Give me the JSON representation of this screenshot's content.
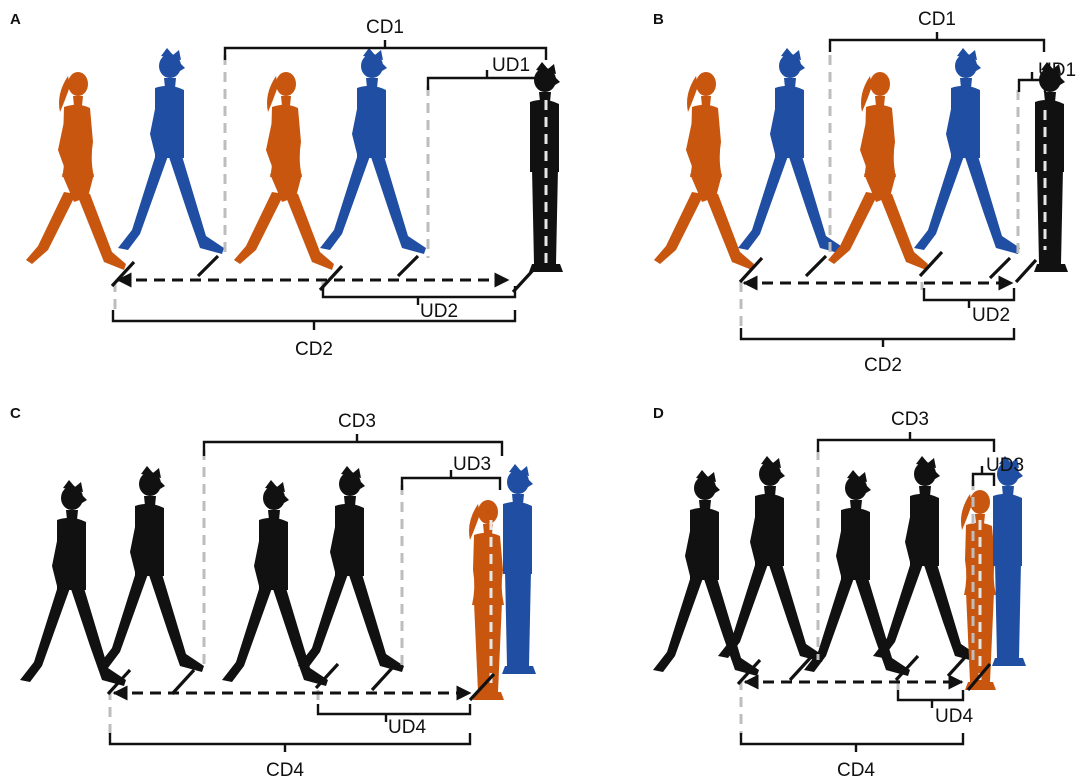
{
  "panels": [
    {
      "letter": "A",
      "ud_top": "UD1",
      "cd_top": "CD1",
      "ud_bottom": "UD2",
      "cd_bottom": "CD2"
    },
    {
      "letter": "B",
      "ud_top": "UD1",
      "cd_top": "CD1",
      "ud_bottom": "UD2",
      "cd_bottom": "CD2"
    },
    {
      "letter": "C",
      "ud_top": "UD3",
      "cd_top": "CD3",
      "ud_bottom": "UD4",
      "cd_bottom": "CD4"
    },
    {
      "letter": "D",
      "ud_top": "UD3",
      "cd_top": "CD3",
      "ud_bottom": "UD4",
      "cd_bottom": "CD4"
    }
  ],
  "colors": {
    "female": "#c8560f",
    "male_blue": "#1f4ea3",
    "black": "#111111",
    "guide": "#bdbdbd"
  }
}
